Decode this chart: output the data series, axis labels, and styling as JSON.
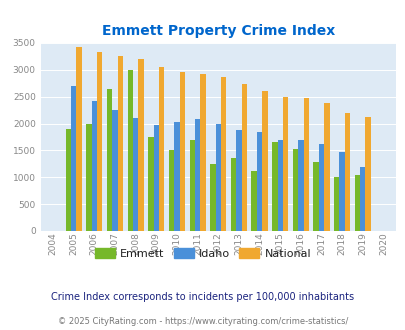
{
  "title": "Emmett Property Crime Index",
  "years": [
    "2004",
    "2005",
    "2006",
    "2007",
    "2008",
    "2009",
    "2010",
    "2011",
    "2012",
    "2013",
    "2014",
    "2015",
    "2016",
    "2017",
    "2018",
    "2019",
    "2020"
  ],
  "emmett": [
    0,
    1900,
    2000,
    2650,
    3000,
    1750,
    1500,
    1700,
    1250,
    1350,
    1125,
    1650,
    1525,
    1275,
    1000,
    1050,
    0
  ],
  "idaho": [
    0,
    2700,
    2425,
    2250,
    2100,
    1975,
    2025,
    2075,
    2000,
    1875,
    1850,
    1700,
    1700,
    1625,
    1475,
    1200,
    0
  ],
  "national": [
    0,
    3420,
    3325,
    3250,
    3200,
    3050,
    2960,
    2920,
    2870,
    2730,
    2600,
    2500,
    2475,
    2380,
    2200,
    2125,
    0
  ],
  "emmett_color": "#76b82a",
  "idaho_color": "#4a90d9",
  "national_color": "#f0a830",
  "bg_color": "#deeaf5",
  "title_color": "#0066cc",
  "tick_color": "#888888",
  "ylim": [
    0,
    3500
  ],
  "yticks": [
    0,
    500,
    1000,
    1500,
    2000,
    2500,
    3000,
    3500
  ],
  "footnote1": "Crime Index corresponds to incidents per 100,000 inhabitants",
  "footnote2": "© 2025 CityRating.com - https://www.cityrating.com/crime-statistics/",
  "legend_labels": [
    "Emmett",
    "Idaho",
    "National"
  ],
  "footnote1_color": "#1a237e",
  "footnote2_color": "#777777"
}
